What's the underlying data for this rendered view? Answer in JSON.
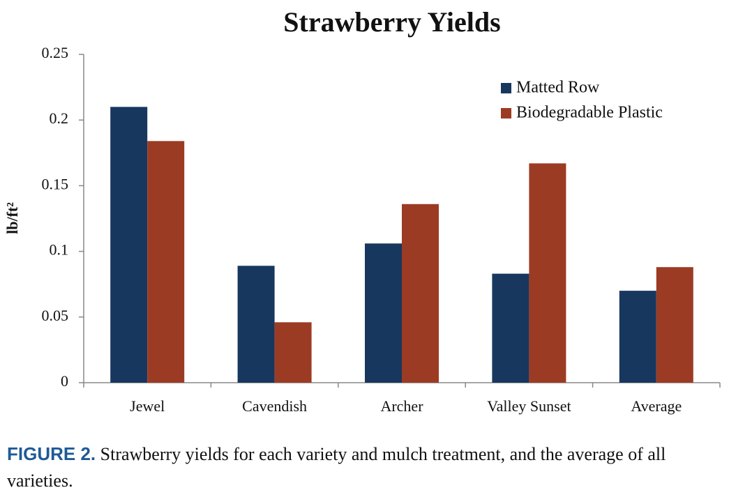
{
  "chart_data": {
    "type": "bar",
    "title": "Strawberry Yields",
    "y_label": "lb/ft²",
    "categories": [
      "Jewel",
      "Cavendish",
      "Archer",
      "Valley Sunset",
      "Average"
    ],
    "series": [
      {
        "name": "Matted Row",
        "color": "#17375e",
        "values": [
          0.21,
          0.089,
          0.106,
          0.083,
          0.07
        ]
      },
      {
        "name": "Biodegradable Plastic",
        "color": "#9c3b23",
        "values": [
          0.184,
          0.046,
          0.136,
          0.167,
          0.088
        ]
      }
    ],
    "ylim": [
      0,
      0.25
    ],
    "yticks": [
      0,
      0.05,
      0.1,
      0.15,
      0.2,
      0.25
    ],
    "grid": false,
    "legend": "top-right"
  },
  "caption": {
    "label": "FIGURE 2.",
    "text": "Strawberry yields for each variety and mulch treatment, and the average of all varieties."
  }
}
